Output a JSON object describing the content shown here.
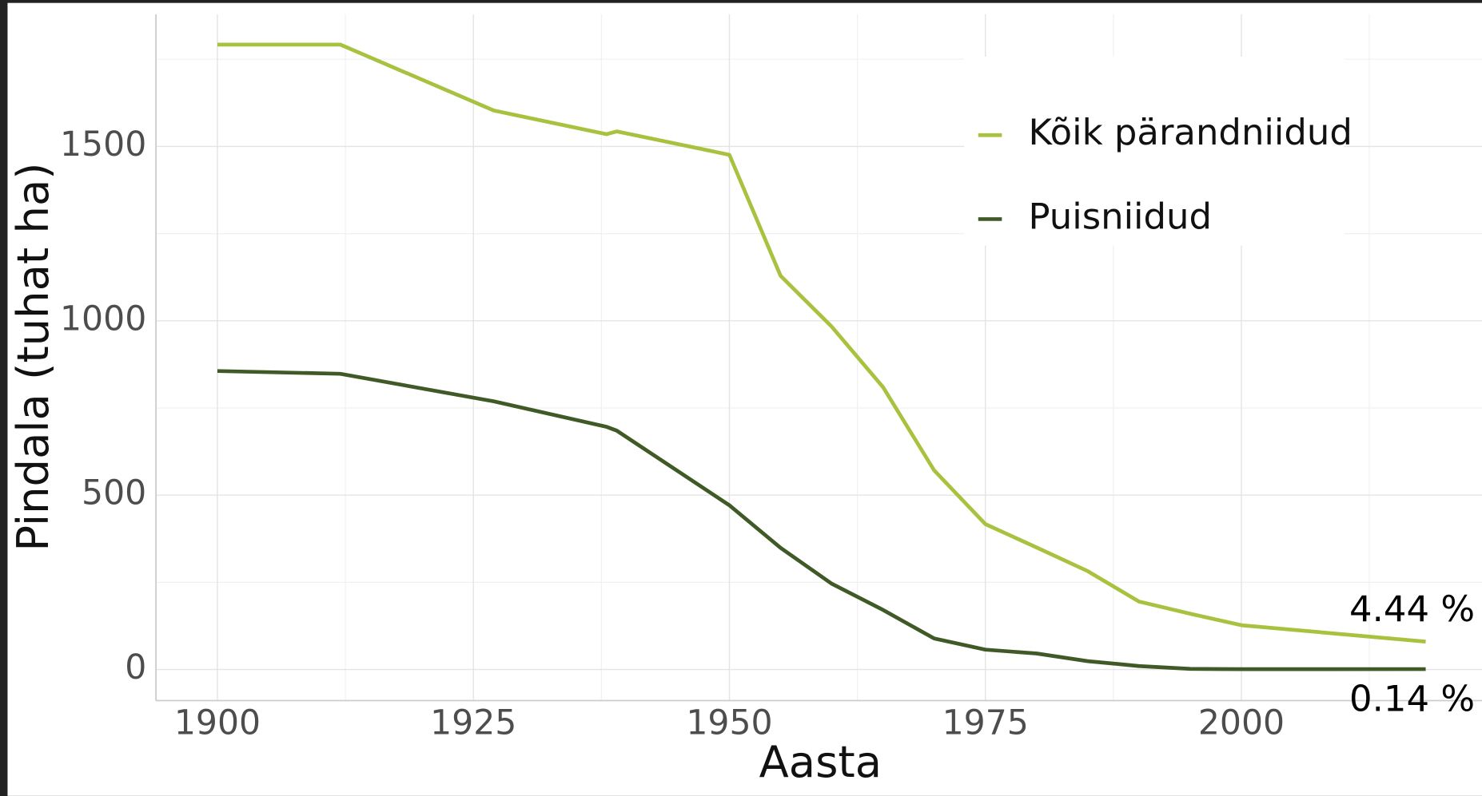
{
  "chart_data": {
    "type": "line",
    "x_label": "Aasta",
    "y_label": "Pindala (tuhat ha)",
    "x": [
      1900,
      1912,
      1927,
      1938,
      1939,
      1950,
      1955,
      1960,
      1965,
      1970,
      1975,
      1980,
      1985,
      1990,
      1995,
      2000,
      2018
    ],
    "series": [
      {
        "name": "Kõik pärandniidud",
        "color": "#a8c23f",
        "values": [
          1792,
          1792,
          1603,
          1535,
          1543,
          1476,
          1129,
          983,
          810,
          571,
          417,
          350,
          282,
          195,
          160,
          127,
          80
        ]
      },
      {
        "name": "Puisniidud",
        "color": "#3f5a27",
        "values": [
          856,
          848,
          769,
          696,
          685,
          471,
          349,
          246,
          171,
          89,
          57,
          46,
          24,
          10,
          2,
          1,
          1.2
        ]
      }
    ],
    "annotations": [
      "4.44 %",
      "0.14 %"
    ],
    "xlim": [
      1894,
      2023.5
    ],
    "ylim": [
      -89,
      1879
    ],
    "xticks": [
      1900,
      1925,
      1950,
      1975,
      2000
    ],
    "yticks": [
      0,
      500,
      1000,
      1500
    ],
    "grid": true,
    "legend": "top-right"
  }
}
